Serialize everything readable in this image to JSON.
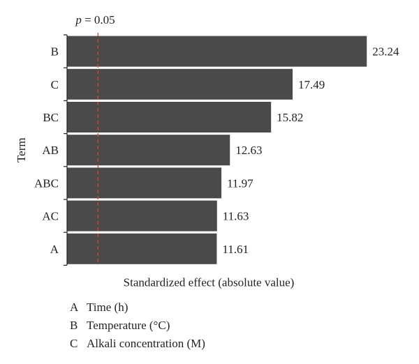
{
  "chart_data": {
    "type": "bar",
    "orientation": "horizontal",
    "categories": [
      "B",
      "C",
      "BC",
      "AB",
      "ABC",
      "AC",
      "A"
    ],
    "values": [
      23.24,
      17.49,
      15.82,
      12.63,
      11.97,
      11.63,
      11.61
    ],
    "data_labels": [
      "23.24",
      "17.49",
      "15.82",
      "12.63",
      "11.97",
      "11.63",
      "11.61"
    ],
    "xlabel": "Standardized effect (absolute value)",
    "ylabel": "Term",
    "threshold": {
      "value": 2.4,
      "label_var": "p",
      "label_rest": " = 0.05"
    },
    "xlim": [
      0,
      23.5
    ],
    "bar_color": "#4a4a4a",
    "threshold_color": "#e04040"
  },
  "legend": [
    {
      "key": "A",
      "label": "Time (h)"
    },
    {
      "key": "B",
      "label": "Temperature (°C)"
    },
    {
      "key": "C",
      "label": "Alkali concentration (M)"
    }
  ]
}
